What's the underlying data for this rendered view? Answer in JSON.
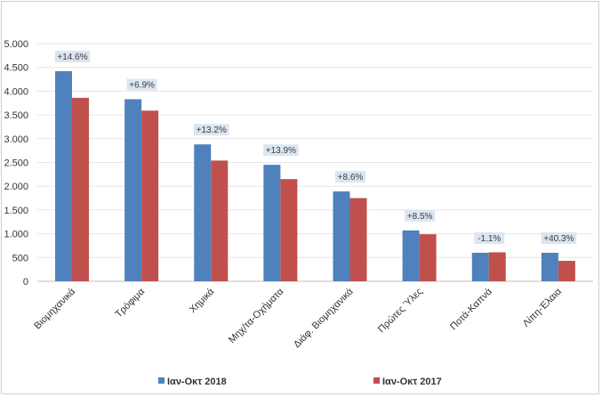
{
  "chart_data": {
    "type": "bar",
    "title": "",
    "xlabel": "",
    "ylabel": "",
    "ylim": [
      0,
      5000
    ],
    "yticks": [
      0,
      500,
      1000,
      1500,
      2000,
      2500,
      3000,
      3500,
      4000,
      4500,
      5000
    ],
    "ytick_labels": [
      "0",
      "500",
      "1.000",
      "1.500",
      "2.000",
      "2.500",
      "3.000",
      "3.500",
      "4.000",
      "4.500",
      "5.000"
    ],
    "grid": true,
    "legend_position": "bottom",
    "categories": [
      "Βιομηχανικά",
      "Τρόφιμα",
      "Χημικά",
      "Μηχ/τα-Οχήματα",
      "Διάφ. Βιομηχανικά",
      "Πρώτες Ύλες",
      "Ποτά-Καπνά",
      "Λίπη-Έλαια"
    ],
    "series": [
      {
        "name": "Ιαν-Οκτ 2018",
        "color": "#4f81bd",
        "values": [
          4420,
          3830,
          2880,
          2450,
          1890,
          1070,
          600,
          600
        ]
      },
      {
        "name": "Ιαν-Οκτ 2017",
        "color": "#c0504d",
        "values": [
          3860,
          3590,
          2540,
          2150,
          1750,
          990,
          610,
          430
        ]
      }
    ],
    "change_labels": [
      "+14.6%",
      "+6.9%",
      "+13.2%",
      "+13.9%",
      "+8.6%",
      "+8.5%",
      "-1.1%",
      "+40.3%"
    ],
    "label_box_color": "#dce6f2"
  }
}
